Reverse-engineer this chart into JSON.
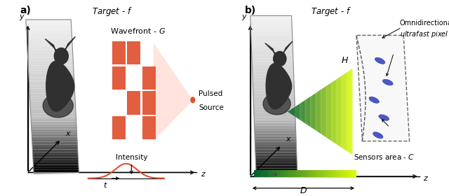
{
  "fig_width": 6.4,
  "fig_height": 2.8,
  "dpi": 100,
  "bg_color": "#ffffff",
  "panel_a_label": "a)",
  "panel_b_label": "b)",
  "title_a": "Target - $f$",
  "title_b": "Target - $f$",
  "wavefront_label": "Wavefront - $G$",
  "pulsed_line1": "Pulsed",
  "pulsed_line2": "Source",
  "intensity_label": "Intensity",
  "H_label": "$H$",
  "D_label": "$D$",
  "t_label": "$t$",
  "sensors_label": "Sensors area - $C$",
  "omni_line1": "Omnidirectional",
  "omni_line2": "ultrafast pixel - $m(t)$",
  "red_color": "#E05030",
  "red_light": "#ffccc0",
  "green_dark": "#006030",
  "green_light": "#e0ff00",
  "blue_sensor": "#3344bb",
  "plane_light": "#f0f0f0",
  "plane_dark": "#888888",
  "silhouette_color": "#444444",
  "axis_color": "#000000"
}
